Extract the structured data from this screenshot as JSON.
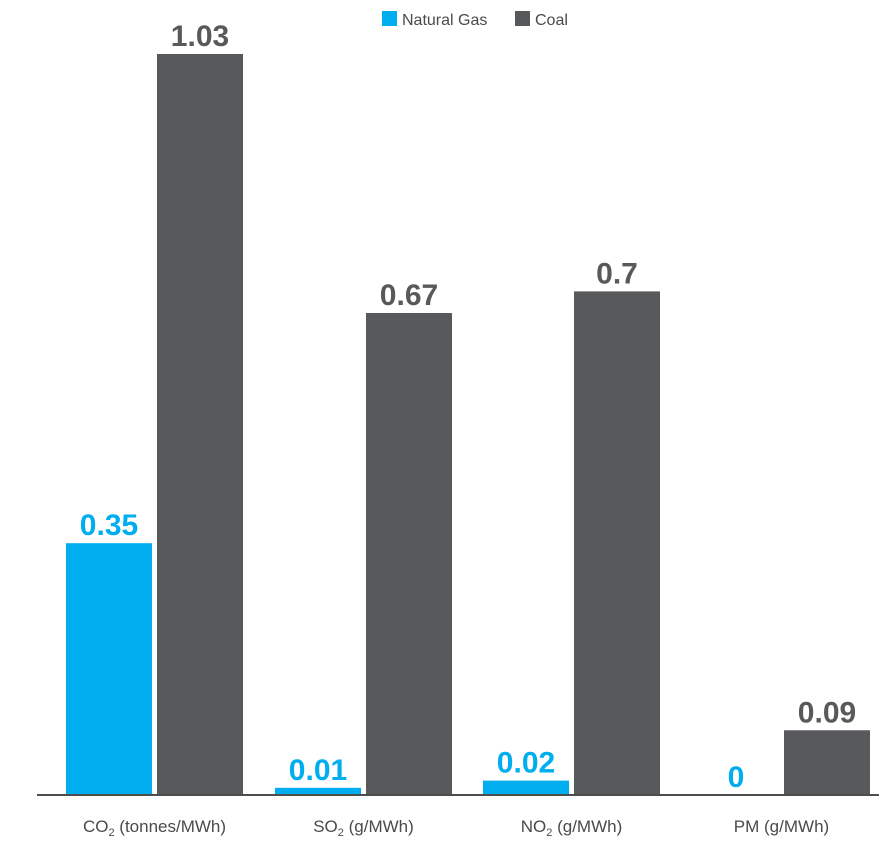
{
  "chart_data": {
    "type": "bar",
    "categories": [
      "CO2 (tonnes/MWh)",
      "SO2 (g/MWh)",
      "NO2 (g/MWh)",
      "PM (g/MWh)"
    ],
    "category_labels": [
      {
        "main": "CO",
        "sub": "2",
        "rest": " (tonnes/MWh)"
      },
      {
        "main": "SO",
        "sub": "2",
        "rest": " (g/MWh)"
      },
      {
        "main": "NO",
        "sub": "2",
        "rest": " (g/MWh)"
      },
      {
        "main": "PM (g/MWh)",
        "sub": "",
        "rest": ""
      }
    ],
    "series": [
      {
        "name": "Natural Gas",
        "color": "#00aeef",
        "values": [
          0.35,
          0.01,
          0.02,
          0
        ],
        "labels": [
          "0.35",
          "0.01",
          "0.02",
          "0"
        ]
      },
      {
        "name": "Coal",
        "color": "#58595b",
        "values": [
          1.03,
          0.67,
          0.7,
          0.09
        ],
        "labels": [
          "1.03",
          "0.67",
          "0.7",
          "0.09"
        ]
      }
    ],
    "ylim": [
      0,
      1.1
    ],
    "grid": false,
    "legend": "top-center",
    "title": "",
    "xlabel": "",
    "ylabel": ""
  }
}
